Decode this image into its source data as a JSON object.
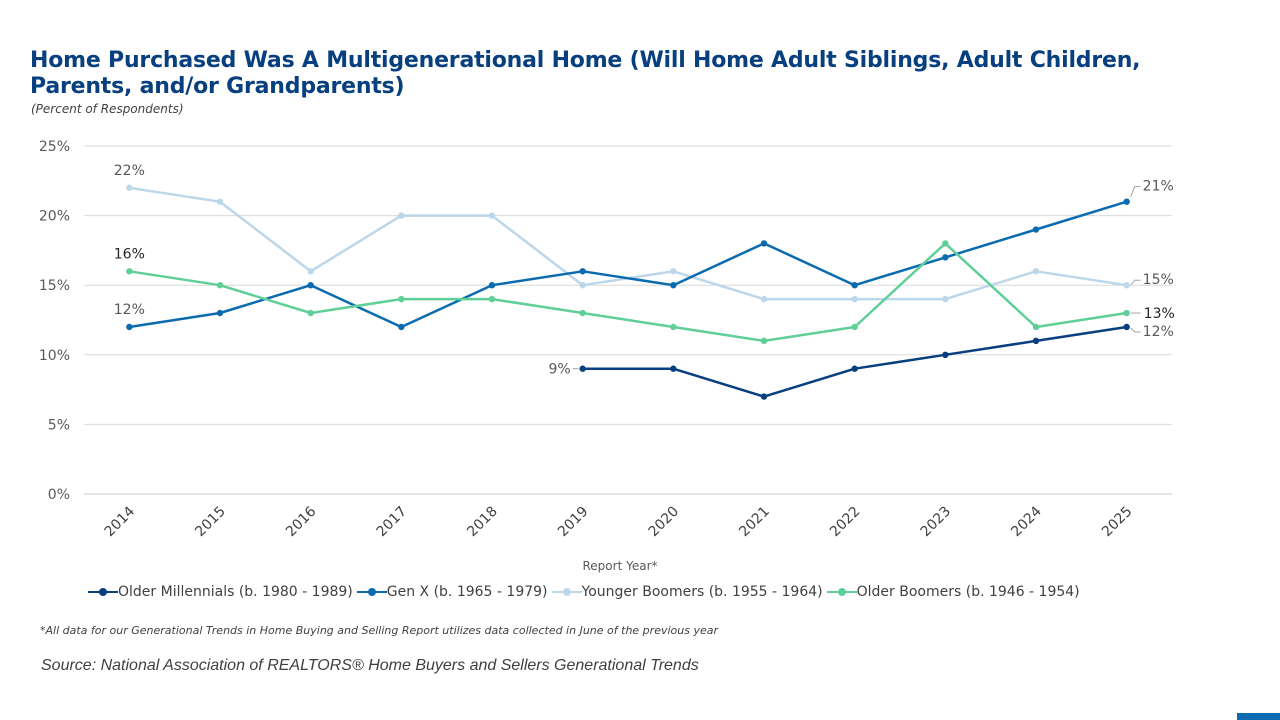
{
  "header": {
    "title": "Home Purchased Was A Multigenerational Home (Will Home Adult Siblings, Adult Children, Parents, and/or Grandparents)",
    "subtitle": "(Percent of Respondents)"
  },
  "chart_data": {
    "type": "line",
    "x": [
      "2014",
      "2015",
      "2016",
      "2017",
      "2018",
      "2019",
      "2020",
      "2021",
      "2022",
      "2023",
      "2024",
      "2025"
    ],
    "xlabel": "Report Year*",
    "ylabel": "",
    "ylim": [
      0,
      25
    ],
    "yticks": [
      0,
      5,
      10,
      15,
      20,
      25
    ],
    "ytick_labels": [
      "0%",
      "5%",
      "10%",
      "15%",
      "20%",
      "25%"
    ],
    "grid": "horizontal",
    "legend_position": "bottom",
    "series": [
      {
        "name": "Older Millennials (b. 1980 - 1989)",
        "color": "#073f7f",
        "values": [
          null,
          null,
          null,
          null,
          null,
          9,
          9,
          7,
          9,
          10,
          11,
          12
        ]
      },
      {
        "name": "Gen X (b. 1965 - 1979)",
        "color": "#0b6bb1",
        "values": [
          12,
          13,
          15,
          12,
          15,
          16,
          15,
          18,
          15,
          17,
          19,
          21
        ]
      },
      {
        "name": "Younger Boomers (b. 1955 - 1964)",
        "color": "#bcd6ea",
        "values": [
          22,
          21,
          16,
          20,
          20,
          15,
          16,
          14,
          14,
          14,
          16,
          15
        ]
      },
      {
        "name": "Older Boomers (b. 1946 - 1954)",
        "color": "#5fcf98",
        "values": [
          16,
          15,
          13,
          14,
          14,
          13,
          12,
          11,
          12,
          18,
          12,
          13
        ]
      }
    ],
    "annotations": [
      {
        "text": "22%",
        "series": 2,
        "index": 0
      },
      {
        "text": "16%",
        "series": 3,
        "index": 0
      },
      {
        "text": "12%",
        "series": 1,
        "index": 0
      },
      {
        "text": "9%",
        "series": 0,
        "index": 5
      },
      {
        "text": "21%",
        "series": 1,
        "index": 11
      },
      {
        "text": "15%",
        "series": 2,
        "index": 11
      },
      {
        "text": "13%",
        "series": 3,
        "index": 11
      },
      {
        "text": "12%",
        "series": 0,
        "index": 11
      }
    ]
  },
  "footer": {
    "footnote": "*All data for our Generational Trends in Home Buying and Selling Report utilizes data collected in June of the previous year",
    "source": "Source: National Association of REALTORS®  Home Buyers and Sellers Generational Trends"
  }
}
